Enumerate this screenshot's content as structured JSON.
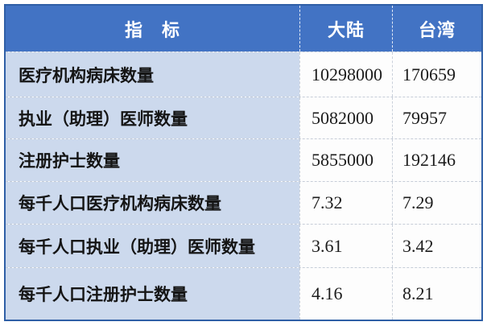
{
  "colors": {
    "header_bg": "#4273c4",
    "label_column_bg": "#ccd9ed",
    "data_cell_bg": "#fdfdfd",
    "outer_border": "#2f5fa6",
    "header_text": "#ffffff",
    "body_text": "#151515"
  },
  "table": {
    "header": {
      "indicator": "指　标",
      "mainland": "大陆",
      "taiwan": "台湾"
    },
    "rows": [
      {
        "label": "医疗机构病床数量",
        "mainland": "10298000",
        "taiwan": "170659"
      },
      {
        "label": "执业（助理）医师数量",
        "mainland": "5082000",
        "taiwan": "79957"
      },
      {
        "label": "注册护士数量",
        "mainland": "5855000",
        "taiwan": "192146"
      },
      {
        "label": "每千人口医疗机构病床数量",
        "mainland": "7.32",
        "taiwan": "7.29"
      },
      {
        "label": "每千人口执业（助理）医师数量",
        "mainland": "3.61",
        "taiwan": "3.42"
      },
      {
        "label": "每千人口注册护士数量",
        "mainland": "4.16",
        "taiwan": "8.21"
      }
    ]
  },
  "chart_data": {
    "type": "table",
    "title": "",
    "columns": [
      "指　标",
      "大陆",
      "台湾"
    ],
    "rows": [
      {
        "indicator": "医疗机构病床数量",
        "mainland": 10298000,
        "taiwan": 170659
      },
      {
        "indicator": "执业（助理）医师数量",
        "mainland": 5082000,
        "taiwan": 79957
      },
      {
        "indicator": "注册护士数量",
        "mainland": 5855000,
        "taiwan": 192146
      },
      {
        "indicator": "每千人口医疗机构病床数量",
        "mainland": 7.32,
        "taiwan": 7.29
      },
      {
        "indicator": "每千人口执业（助理）医师数量",
        "mainland": 3.61,
        "taiwan": 3.42
      },
      {
        "indicator": "每千人口注册护士数量",
        "mainland": 4.16,
        "taiwan": 8.21
      }
    ]
  }
}
